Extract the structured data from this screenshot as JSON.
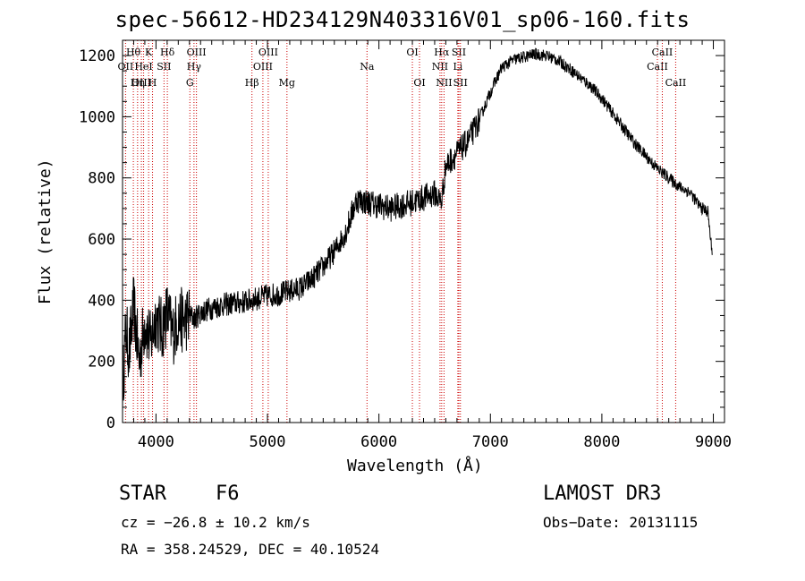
{
  "chart_data": {
    "type": "line",
    "title": "spec-56612-HD234129N403316V01_sp06-160.fits",
    "xlabel": "Wavelength (Å)",
    "ylabel": "Flux (relative)",
    "xlim": [
      3700,
      9100
    ],
    "ylim": [
      0,
      1250
    ],
    "xticks": [
      4000,
      5000,
      6000,
      7000,
      8000,
      9000
    ],
    "yticks": [
      0,
      200,
      400,
      600,
      800,
      1000,
      1200
    ],
    "series": [
      {
        "name": "spectrum",
        "x": [
          3700,
          3730,
          3760,
          3800,
          3850,
          3900,
          3950,
          4000,
          4050,
          4100,
          4150,
          4200,
          4250,
          4300,
          4350,
          4400,
          4500,
          4600,
          4700,
          4800,
          4900,
          5000,
          5100,
          5200,
          5300,
          5400,
          5500,
          5600,
          5700,
          5800,
          5900,
          6000,
          6100,
          6200,
          6300,
          6400,
          6500,
          6560,
          6600,
          6700,
          6800,
          6900,
          7000,
          7100,
          7200,
          7300,
          7400,
          7500,
          7600,
          7700,
          7800,
          7900,
          8000,
          8100,
          8200,
          8300,
          8400,
          8500,
          8600,
          8700,
          8800,
          8850,
          8900,
          8950,
          8990
        ],
        "values": [
          120,
          300,
          230,
          380,
          200,
          330,
          260,
          350,
          300,
          360,
          290,
          340,
          330,
          350,
          340,
          360,
          375,
          385,
          390,
          395,
          405,
          415,
          420,
          430,
          440,
          470,
          510,
          560,
          620,
          730,
          720,
          710,
          700,
          710,
          720,
          735,
          750,
          720,
          840,
          880,
          920,
          990,
          1080,
          1160,
          1185,
          1195,
          1205,
          1200,
          1185,
          1160,
          1130,
          1100,
          1060,
          1010,
          960,
          910,
          870,
          830,
          800,
          770,
          750,
          720,
          700,
          690,
          550
        ]
      }
    ],
    "line_markers": [
      {
        "label": "Hθ",
        "x": 3797,
        "row": 1
      },
      {
        "label": "OII",
        "x": 3727,
        "row": 2
      },
      {
        "label": "OIII",
        "x": 3869,
        "row": 3
      },
      {
        "label": "HeI",
        "x": 3889,
        "row": 2
      },
      {
        "label": "K",
        "x": 3934,
        "row": 1
      },
      {
        "label": "Hη",
        "x": 3835,
        "row": 3
      },
      {
        "label": "H",
        "x": 3969,
        "row": 3
      },
      {
        "label": "SII",
        "x": 4072,
        "row": 2
      },
      {
        "label": "Hδ",
        "x": 4102,
        "row": 1
      },
      {
        "label": "G",
        "x": 4304,
        "row": 3
      },
      {
        "label": "Hγ",
        "x": 4341,
        "row": 2
      },
      {
        "label": "OIII",
        "x": 4363,
        "row": 1
      },
      {
        "label": "Hβ",
        "x": 4861,
        "row": 3
      },
      {
        "label": "OIII",
        "x": 4959,
        "row": 2
      },
      {
        "label": "OIII",
        "x": 5007,
        "row": 1
      },
      {
        "label": "Mg",
        "x": 5175,
        "row": 3
      },
      {
        "label": "Na",
        "x": 5893,
        "row": 2
      },
      {
        "label": "OI",
        "x": 6300,
        "row": 1
      },
      {
        "label": "OI",
        "x": 6364,
        "row": 3
      },
      {
        "label": "NII",
        "x": 6548,
        "row": 2
      },
      {
        "label": "Hα",
        "x": 6563,
        "row": 1
      },
      {
        "label": "NII",
        "x": 6584,
        "row": 3
      },
      {
        "label": "Li",
        "x": 6708,
        "row": 2
      },
      {
        "label": "SII",
        "x": 6717,
        "row": 1
      },
      {
        "label": "SII",
        "x": 6731,
        "row": 3
      },
      {
        "label": "CaII",
        "x": 8498,
        "row": 2
      },
      {
        "label": "CaII",
        "x": 8542,
        "row": 1
      },
      {
        "label": "CaII",
        "x": 8662,
        "row": 3
      }
    ]
  },
  "info": {
    "object_class": "STAR",
    "subclass": "F6",
    "survey": "LAMOST DR3",
    "cz": "cz = −26.8 ± 10.2 km/s",
    "obs_date": "Obs−Date: 20131115",
    "coords": "RA = 358.24529, DEC =  40.10524"
  },
  "colors": {
    "axis": "#000000",
    "spectrum": "#000000",
    "marker": "#cc0000"
  }
}
